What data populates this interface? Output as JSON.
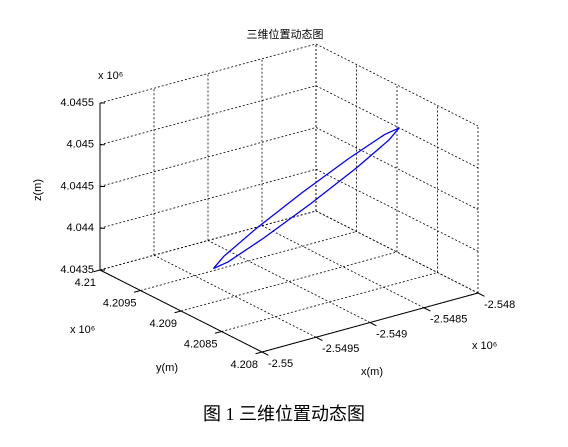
{
  "chart_data": {
    "type": "line3d",
    "title": "三维位置动态图",
    "xlabel": "x(m)",
    "ylabel": "y(m)",
    "zlabel": "z(m)",
    "x_multiplier": "x 10⁶",
    "y_multiplier": "x 10⁶",
    "z_multiplier": "x 10⁶",
    "xlim": [
      -2.55,
      -2.548
    ],
    "xticks": [
      -2.55,
      -2.5495,
      -2.549,
      -2.5485,
      -2.548
    ],
    "ylim": [
      4.208,
      4.21
    ],
    "yticks": [
      4.208,
      4.2085,
      4.209,
      4.2095,
      4.21
    ],
    "zlim": [
      4.0435,
      4.0455
    ],
    "zticks": [
      4.0435,
      4.044,
      4.0445,
      4.045,
      4.0455
    ],
    "grid": true,
    "series": [
      {
        "color": "#0000ff",
        "x": [
          -2.54816,
          -2.548263,
          -2.548505,
          -2.54882,
          -2.549125,
          -2.549337,
          -2.5494,
          -2.549297,
          -2.549055,
          -2.54874,
          -2.548435,
          -2.548223,
          -2.54816
        ],
        "y": [
          4.20876,
          4.208803,
          4.20892,
          4.20908,
          4.20924,
          4.209357,
          4.2094,
          4.209357,
          4.20924,
          4.20908,
          4.20892,
          4.208803,
          4.20876
        ],
        "values": [
          4.04516,
          4.045096,
          4.044839,
          4.04446,
          4.044059,
          4.043744,
          4.0436,
          4.043664,
          4.043921,
          4.0443,
          4.044701,
          4.045016,
          4.04516
        ]
      }
    ]
  },
  "caption": "图 1 三维位置动态图"
}
